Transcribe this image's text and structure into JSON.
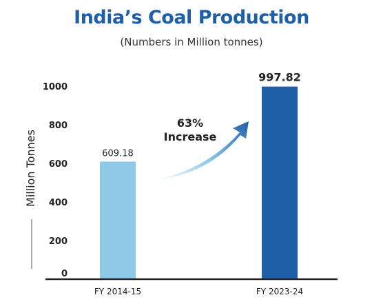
{
  "chart_data": {
    "type": "bar",
    "title": "India’s Coal Production",
    "subtitle": "(Numbers in Million tonnes)",
    "ylabel": "Million Tonnes",
    "xlabel": "",
    "categories": [
      "FY 2014-15",
      "FY 2023-24"
    ],
    "values": [
      609.18,
      997.82
    ],
    "value_labels": [
      "609.18",
      "997.82"
    ],
    "yticks": [
      0,
      200,
      400,
      600,
      800,
      1000
    ],
    "ytick_labels": [
      "0",
      "200",
      "400",
      "600",
      "800",
      "1000"
    ],
    "ylim": [
      0,
      1050
    ],
    "grid": false,
    "annotation": {
      "line1": "63%",
      "line2": "Increase"
    },
    "colors": {
      "bar_1": "#8ec9e8",
      "bar_2": "#1f5fa8",
      "arrow": "#1f5fa8",
      "title": "#1f5fa8"
    }
  }
}
